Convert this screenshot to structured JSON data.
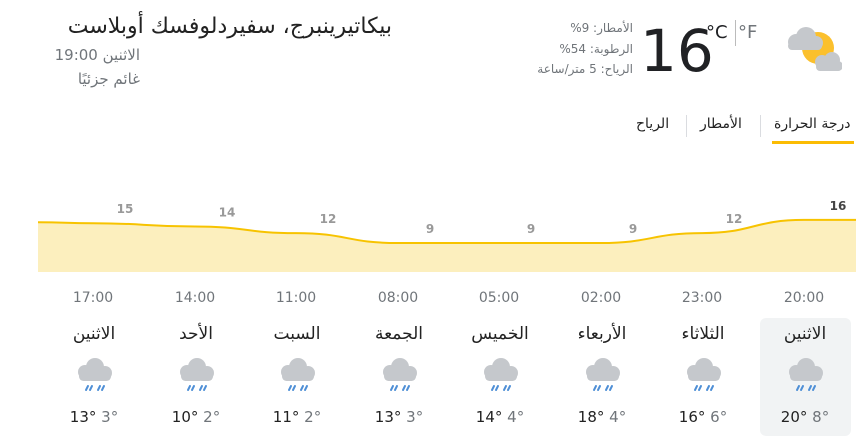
{
  "header": {
    "location": "بيكاتيرينبرج، سفيردلوفسك أوبلاست",
    "datetime": "الاثنين 19:00",
    "condition": "غائم جزئيًا"
  },
  "current": {
    "temperature": "16",
    "unit_c": "°C",
    "unit_f": "°F",
    "precip": "الأمطار: 9%",
    "humidity": "الرطوبة: 54%",
    "wind": "الرياح: 5 متر/ساعة",
    "icon": "partly-cloudy-icon"
  },
  "tabs": [
    {
      "label": "درجة الحرارة",
      "active": true
    },
    {
      "label": "الأمطار",
      "active": false
    },
    {
      "label": "الرياح",
      "active": false
    }
  ],
  "chart_data": {
    "type": "area",
    "x": [
      "20:00",
      "23:00",
      "02:00",
      "05:00",
      "08:00",
      "11:00",
      "14:00",
      "17:00"
    ],
    "values": [
      16,
      12,
      9,
      9,
      9,
      12,
      14,
      15
    ],
    "colors": {
      "line": "#f7c300",
      "fill": "#fcefbe"
    }
  },
  "days": [
    {
      "name": "الاثنين",
      "high": "20°",
      "low": "8°",
      "selected": true
    },
    {
      "name": "الثلاثاء",
      "high": "16°",
      "low": "6°"
    },
    {
      "name": "الأربعاء",
      "high": "18°",
      "low": "4°"
    },
    {
      "name": "الخميس",
      "high": "14°",
      "low": "4°"
    },
    {
      "name": "الجمعة",
      "high": "13°",
      "low": "3°"
    },
    {
      "name": "السبت",
      "high": "11°",
      "low": "2°"
    },
    {
      "name": "الأحد",
      "high": "10°",
      "low": "2°"
    },
    {
      "name": "الاثنين",
      "high": "13°",
      "low": "3°"
    }
  ]
}
